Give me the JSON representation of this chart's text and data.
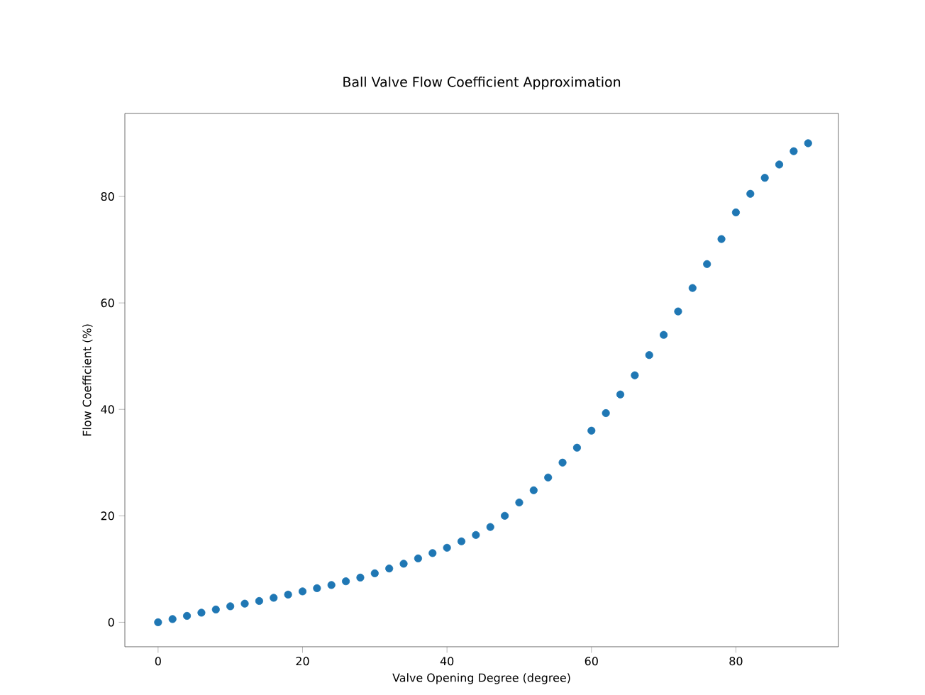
{
  "chart_data": {
    "type": "scatter",
    "title": "Ball Valve Flow Coefficient Approximation",
    "xlabel": "Valve Opening Degree (degree)",
    "ylabel": "Flow Coefficient (%)",
    "x": [
      0,
      2,
      4,
      6,
      8,
      10,
      12,
      14,
      16,
      18,
      20,
      22,
      24,
      26,
      28,
      30,
      32,
      34,
      36,
      38,
      40,
      42,
      44,
      46,
      48,
      50,
      52,
      54,
      56,
      58,
      60,
      62,
      64,
      66,
      68,
      70,
      72,
      74,
      76,
      78,
      80,
      82,
      84,
      86,
      88,
      90
    ],
    "series": [
      {
        "color": "#1f77b4",
        "values": [
          0,
          0.6,
          1.2,
          1.8,
          2.4,
          3.0,
          3.5,
          4.0,
          4.6,
          5.2,
          5.8,
          6.4,
          7.0,
          7.7,
          8.4,
          9.2,
          10.1,
          11.0,
          12.0,
          13.0,
          14.0,
          15.2,
          16.4,
          17.9,
          20.0,
          22.5,
          24.8,
          27.2,
          30.0,
          32.8,
          36.0,
          39.3,
          42.8,
          46.4,
          50.2,
          54.0,
          58.4,
          62.8,
          67.3,
          72.0,
          77.0,
          80.5,
          83.5,
          86.0,
          88.5,
          90.0
        ]
      }
    ],
    "xlim": [
      -4.6,
      94.2
    ],
    "ylim": [
      -4.6,
      95.6
    ],
    "xticks": [
      0,
      20,
      40,
      60,
      80
    ],
    "yticks": [
      0,
      20,
      40,
      60,
      80
    ],
    "marker": "circle",
    "grid": false
  }
}
